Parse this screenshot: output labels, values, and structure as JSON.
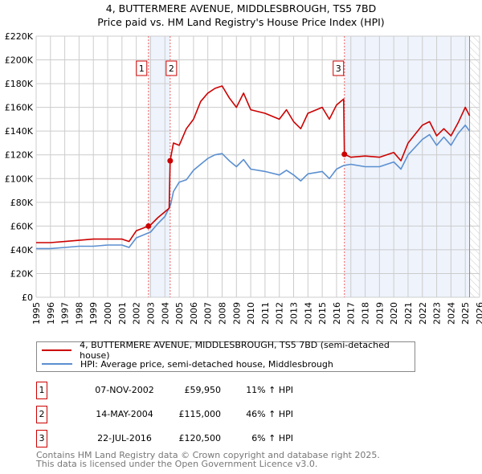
{
  "chart_data": {
    "type": "line",
    "title": "4, BUTTERMERE AVENUE, MIDDLESBROUGH, TS5 7BD",
    "subtitle": "Price paid vs. HM Land Registry's House Price Index (HPI)",
    "xlim": [
      1995,
      2026
    ],
    "ylim": [
      0,
      220000
    ],
    "grid": true,
    "x_ticks": [
      "1995",
      "1996",
      "1997",
      "1998",
      "1999",
      "2000",
      "2001",
      "2002",
      "2003",
      "2004",
      "2005",
      "2006",
      "2007",
      "2008",
      "2009",
      "2010",
      "2011",
      "2012",
      "2013",
      "2014",
      "2015",
      "2016",
      "2017",
      "2018",
      "2019",
      "2020",
      "2021",
      "2022",
      "2023",
      "2024",
      "2025",
      "2026"
    ],
    "y_ticks": [
      {
        "v": 0,
        "label": "£0"
      },
      {
        "v": 20000,
        "label": "£20K"
      },
      {
        "v": 40000,
        "label": "£40K"
      },
      {
        "v": 60000,
        "label": "£60K"
      },
      {
        "v": 80000,
        "label": "£80K"
      },
      {
        "v": 100000,
        "label": "£100K"
      },
      {
        "v": 120000,
        "label": "£120K"
      },
      {
        "v": 140000,
        "label": "£140K"
      },
      {
        "v": 160000,
        "label": "£160K"
      },
      {
        "v": 180000,
        "label": "£180K"
      },
      {
        "v": 200000,
        "label": "£200K"
      },
      {
        "v": 220000,
        "label": "£220K"
      }
    ],
    "series": [
      {
        "name": "4, BUTTERMERE AVENUE, MIDDLESBROUGH, TS5 7BD (semi-detached house)",
        "color": "#cc0000",
        "x": [
          1995,
          1996,
          1997,
          1998,
          1999,
          2000,
          2001,
          2001.5,
          2002,
          2002.85,
          2003,
          2003.5,
          2004,
          2004.3,
          2004.37,
          2004.6,
          2005,
          2005.5,
          2006,
          2006.5,
          2007,
          2007.5,
          2008,
          2008.5,
          2009,
          2009.5,
          2010,
          2011,
          2012,
          2012.5,
          2013,
          2013.5,
          2014,
          2015,
          2015.5,
          2016,
          2016.5,
          2016.55,
          2017,
          2018,
          2019,
          2020,
          2020.5,
          2021,
          2022,
          2022.5,
          2023,
          2023.5,
          2024,
          2024.5,
          2025,
          2025.3
        ],
        "y": [
          46000,
          46000,
          47000,
          48000,
          49000,
          49000,
          49000,
          47000,
          56000,
          59950,
          61000,
          67000,
          72000,
          75000,
          115000,
          130000,
          128000,
          142000,
          150000,
          165000,
          172000,
          176000,
          178000,
          168000,
          160000,
          172000,
          158000,
          155000,
          150000,
          158000,
          148000,
          142000,
          155000,
          160000,
          150000,
          162000,
          167000,
          120500,
          118000,
          119000,
          118000,
          122000,
          115000,
          130000,
          145000,
          148000,
          136000,
          142000,
          136000,
          147000,
          160000,
          153000
        ]
      },
      {
        "name": "HPI: Average price, semi-detached house, Middlesbrough",
        "color": "#5b8fd0",
        "x": [
          1995,
          1996,
          1997,
          1998,
          1999,
          2000,
          2001,
          2001.5,
          2002,
          2003,
          2003.5,
          2004,
          2004.4,
          2004.6,
          2005,
          2005.5,
          2006,
          2006.5,
          2007,
          2007.5,
          2008,
          2008.5,
          2009,
          2009.5,
          2010,
          2011,
          2012,
          2012.5,
          2013,
          2013.5,
          2014,
          2015,
          2015.5,
          2016,
          2016.5,
          2017,
          2018,
          2019,
          2020,
          2020.5,
          2021,
          2022,
          2022.5,
          2023,
          2023.5,
          2024,
          2024.5,
          2025,
          2025.3
        ],
        "y": [
          41000,
          41000,
          42000,
          43000,
          43000,
          44000,
          44000,
          42000,
          50000,
          55000,
          62000,
          68000,
          78000,
          89000,
          97000,
          99000,
          107000,
          112000,
          117000,
          120000,
          121000,
          115000,
          110000,
          116000,
          108000,
          106000,
          103000,
          107000,
          103000,
          98000,
          104000,
          106000,
          100000,
          108000,
          111000,
          112000,
          110000,
          110000,
          114000,
          108000,
          120000,
          133000,
          137000,
          128000,
          135000,
          128000,
          138000,
          145000,
          140000
        ]
      }
    ],
    "sales": [
      {
        "n": "1",
        "x": 2002.85,
        "y": 59950
      },
      {
        "n": "2",
        "x": 2004.37,
        "y": 115000
      },
      {
        "n": "3",
        "x": 2016.55,
        "y": 120500
      }
    ],
    "shaded": [
      [
        2002.85,
        2004.37
      ],
      [
        2016.55,
        2025.3
      ]
    ],
    "hatched_from": 2025.3
  },
  "legend": {
    "red": "4, BUTTERMERE AVENUE, MIDDLESBROUGH, TS5 7BD (semi-detached house)",
    "blue": "HPI: Average price, semi-detached house, Middlesbrough"
  },
  "table": [
    {
      "n": "1",
      "date": "07-NOV-2002",
      "price": "£59,950",
      "hpi": "11% ↑ HPI"
    },
    {
      "n": "2",
      "date": "14-MAY-2004",
      "price": "£115,000",
      "hpi": "46% ↑ HPI"
    },
    {
      "n": "3",
      "date": "22-JUL-2016",
      "price": "£120,500",
      "hpi": "6% ↑ HPI"
    }
  ],
  "footer": [
    "Contains HM Land Registry data © Crown copyright and database right 2025.",
    "This data is licensed under the Open Government Licence v3.0."
  ]
}
